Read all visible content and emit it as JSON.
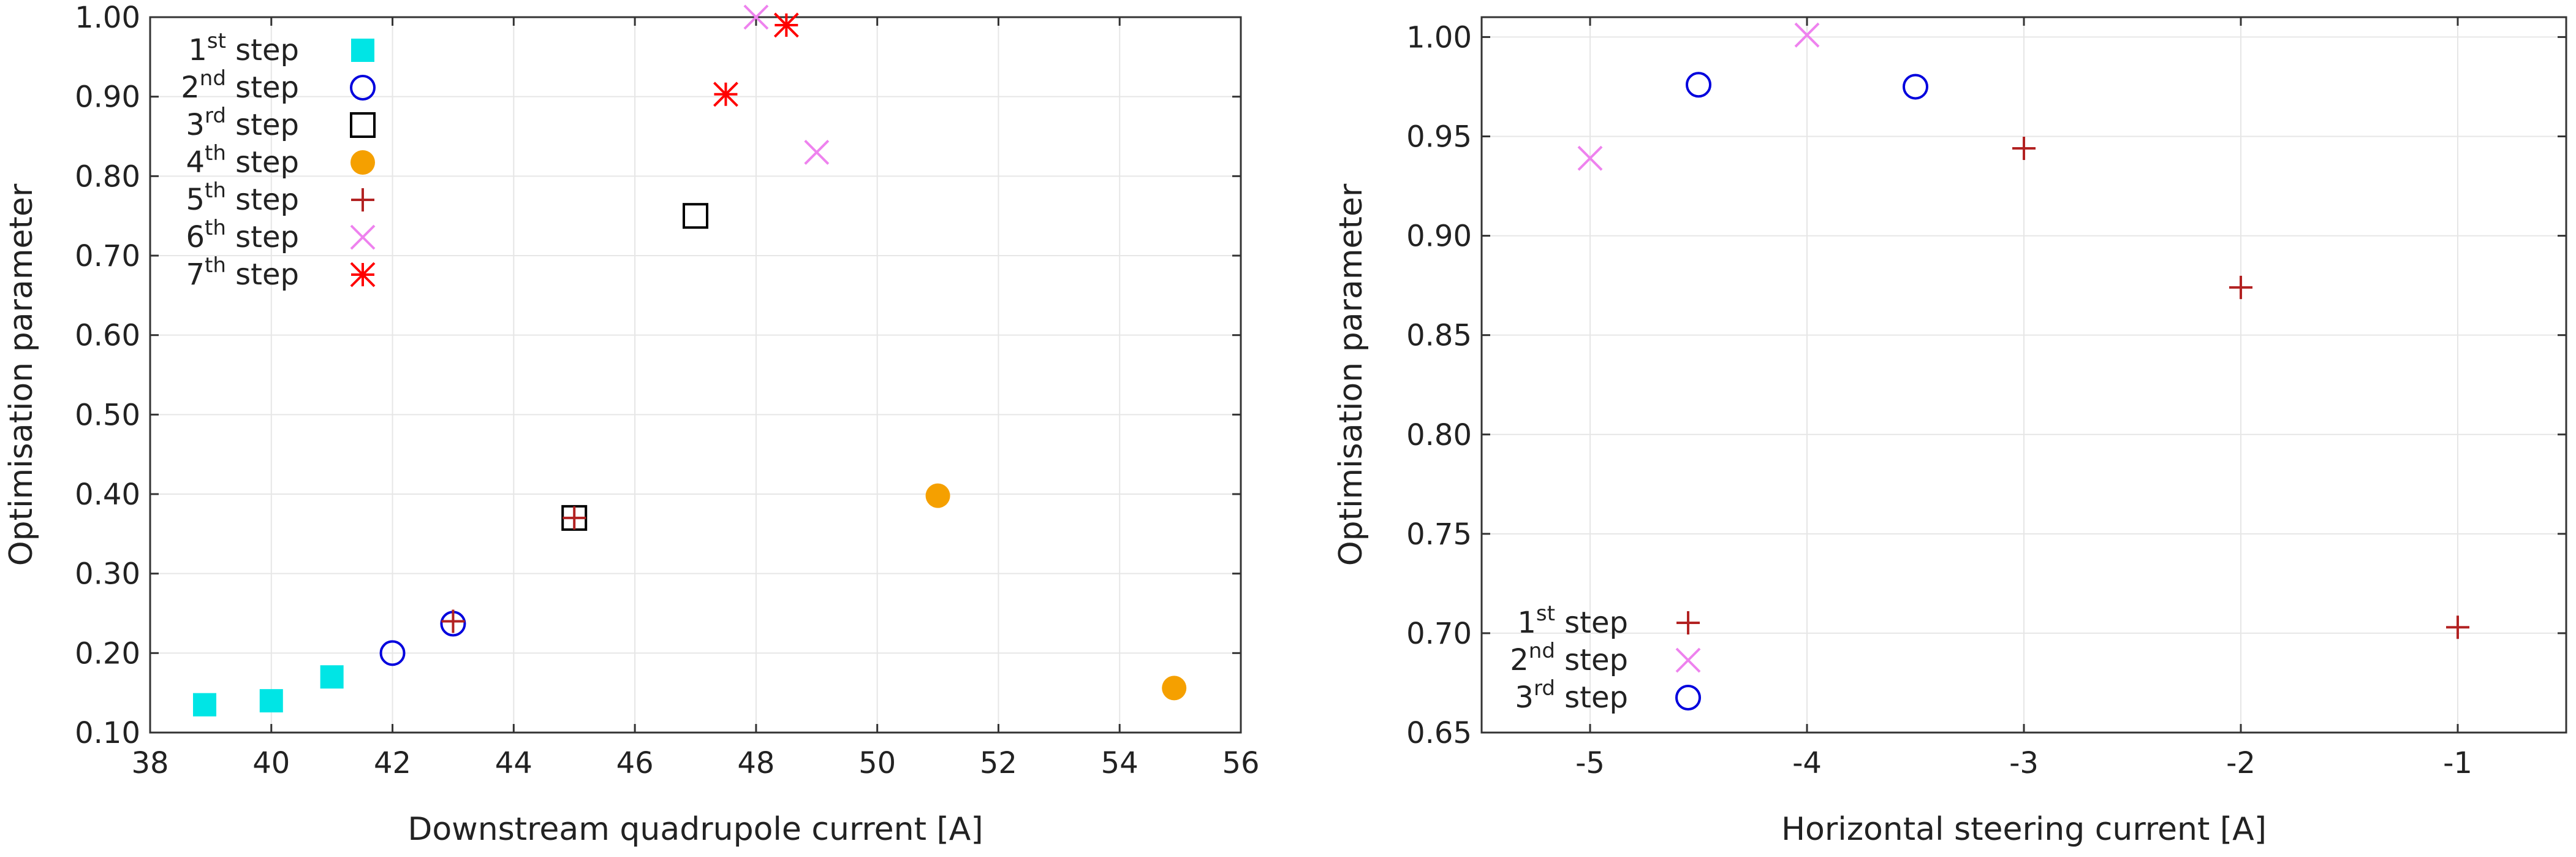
{
  "chart_data": [
    {
      "type": "scatter",
      "xlabel": "Downstream quadrupole current [A]",
      "ylabel": "Optimisation parameter",
      "xlim": [
        38,
        56
      ],
      "ylim": [
        0.1,
        1.0
      ],
      "xticks": [
        38,
        40,
        42,
        44,
        46,
        48,
        50,
        52,
        54,
        56
      ],
      "yticks": [
        0.1,
        0.2,
        0.3,
        0.4,
        0.5,
        0.6,
        0.7,
        0.8,
        0.9,
        1.0
      ],
      "ytick_format": 2,
      "grid": true,
      "legend_position": "top-left",
      "series": [
        {
          "name": "1st step",
          "ord": "1",
          "sup": "st",
          "marker": "square-filled",
          "color": "#00e5e5",
          "points": [
            [
              38.9,
              0.135
            ],
            [
              40.0,
              0.14
            ],
            [
              41.0,
              0.17
            ]
          ]
        },
        {
          "name": "2nd step",
          "ord": "2",
          "sup": "nd",
          "marker": "circle",
          "color": "#0000dd",
          "points": [
            [
              42.0,
              0.2
            ],
            [
              43.0,
              0.237
            ]
          ]
        },
        {
          "name": "3rd step",
          "ord": "3",
          "sup": "rd",
          "marker": "square",
          "color": "#000000",
          "points": [
            [
              45.0,
              0.37
            ],
            [
              47.0,
              0.75
            ]
          ]
        },
        {
          "name": "4th step",
          "ord": "4",
          "sup": "th",
          "marker": "circle-filled",
          "color": "#f5a000",
          "points": [
            [
              51.0,
              0.398
            ],
            [
              54.9,
              0.156
            ]
          ]
        },
        {
          "name": "5th step",
          "ord": "5",
          "sup": "th",
          "marker": "plus",
          "color": "#b22222",
          "points": [
            [
              43.0,
              0.24
            ],
            [
              45.0,
              0.37
            ]
          ]
        },
        {
          "name": "6th step",
          "ord": "6",
          "sup": "th",
          "marker": "cross",
          "color": "#ee82ee",
          "points": [
            [
              48.0,
              1.0
            ],
            [
              49.0,
              0.83
            ]
          ]
        },
        {
          "name": "7th step",
          "ord": "7",
          "sup": "th",
          "marker": "star",
          "color": "#ff0000",
          "points": [
            [
              47.5,
              0.903
            ],
            [
              48.5,
              0.99
            ]
          ]
        }
      ]
    },
    {
      "type": "scatter",
      "xlabel": "Horizontal steering current [A]",
      "ylabel": "Optimisation parameter",
      "xlim": [
        -5.5,
        -0.5
      ],
      "ylim": [
        0.65,
        1.01
      ],
      "xticks": [
        -5,
        -4,
        -3,
        -2,
        -1
      ],
      "yticks": [
        0.65,
        0.7,
        0.75,
        0.8,
        0.85,
        0.9,
        0.95,
        1.0
      ],
      "ytick_format": 2,
      "grid": true,
      "legend_position": "bottom-left",
      "series": [
        {
          "name": "1st step",
          "ord": "1",
          "sup": "st",
          "marker": "plus",
          "color": "#b22222",
          "points": [
            [
              -3.0,
              0.944
            ],
            [
              -2.0,
              0.874
            ],
            [
              -1.0,
              0.703
            ]
          ]
        },
        {
          "name": "2nd step",
          "ord": "2",
          "sup": "nd",
          "marker": "cross",
          "color": "#ee82ee",
          "points": [
            [
              -5.0,
              0.939
            ],
            [
              -4.0,
              1.001
            ]
          ]
        },
        {
          "name": "3rd step",
          "ord": "3",
          "sup": "rd",
          "marker": "circle",
          "color": "#0000dd",
          "points": [
            [
              -4.5,
              0.976
            ],
            [
              -3.5,
              0.975
            ]
          ]
        }
      ]
    }
  ],
  "legend_suffix": "step"
}
